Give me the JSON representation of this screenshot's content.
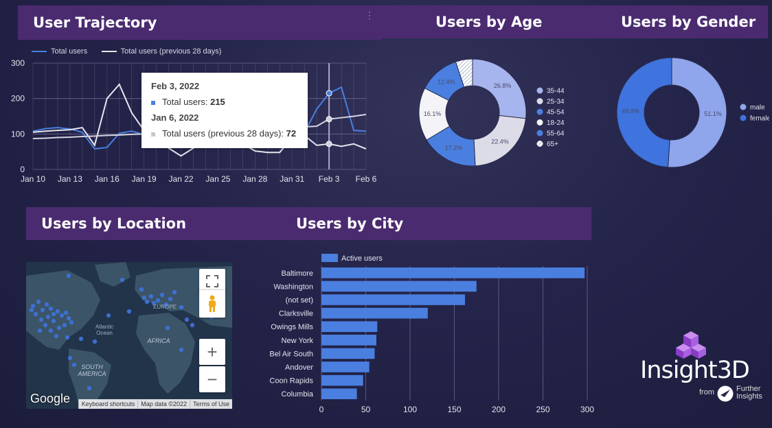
{
  "headers": {
    "trajectory": "User Trajectory",
    "age": "Users by Age",
    "gender": "Users by Gender",
    "location": "Users by Location",
    "city": "Users by City"
  },
  "trajectory_legend": {
    "current": "Total users",
    "previous": "Total users (previous 28 days)",
    "current_color": "#4a7fe0",
    "previous_color": "#e6e6ee"
  },
  "tooltip": {
    "date1": "Feb 3, 2022",
    "label1": "Total users: ",
    "value1": "215",
    "date2": "Jan 6, 2022",
    "label2": "Total users (previous 28 days): ",
    "value2": "72"
  },
  "colors": {
    "header_bg": "#4b2b70",
    "accent_blue": "#4a7fe0",
    "light_blue": "#a7b5ee",
    "light_gray": "#dcdce8",
    "white": "#f4f4f8",
    "gender_male": "#8fa5ec",
    "gender_female": "#3f73dd",
    "map_land": "#3b5468",
    "map_water": "#22344a",
    "map_dot": "#3f73dd"
  },
  "map": {
    "labels": [
      "Atlantic",
      "Ocean",
      "AFRICA",
      "SOUTH",
      "AMERICA",
      "EUROPE"
    ],
    "google": "Google",
    "footer": [
      "Keyboard shortcuts",
      "Map data ©2022",
      "Terms of Use"
    ],
    "icons": [
      "fullscreen-icon",
      "pegman-icon",
      "zoom-in-icon",
      "zoom-out-icon"
    ]
  },
  "brand": {
    "name": "Insight3D",
    "from": "from",
    "company_line1": "Further",
    "company_line2": "Insights"
  },
  "chart_data": [
    {
      "type": "line",
      "title": "User Trajectory",
      "x": [
        "Jan 10",
        "Jan 11",
        "Jan 12",
        "Jan 13",
        "Jan 14",
        "Jan 15",
        "Jan 16",
        "Jan 17",
        "Jan 18",
        "Jan 19",
        "Jan 20",
        "Jan 21",
        "Jan 22",
        "Jan 23",
        "Jan 24",
        "Jan 25",
        "Jan 26",
        "Jan 27",
        "Jan 28",
        "Jan 29",
        "Jan 30",
        "Jan 31",
        "Feb 1",
        "Feb 2",
        "Feb 3",
        "Feb 4",
        "Feb 5",
        "Feb 6"
      ],
      "xticks": [
        "Jan 10",
        "Jan 13",
        "Jan 16",
        "Jan 19",
        "Jan 22",
        "Jan 25",
        "Jan 28",
        "Jan 31",
        "Feb 3",
        "Feb 6"
      ],
      "yticks": [
        0,
        100,
        200,
        300
      ],
      "ylim": [
        0,
        300
      ],
      "grid": true,
      "legend_position": "top-left",
      "series": [
        {
          "name": "Total users",
          "values": [
            108,
            115,
            118,
            114,
            105,
            58,
            62,
            102,
            108,
            98,
            104,
            100,
            108,
            110,
            104,
            106,
            108,
            106,
            102,
            98,
            96,
            100,
            104,
            170,
            215,
            232,
            110,
            108
          ]
        },
        {
          "name": "Total users (previous 28 days)",
          "values": [
            105,
            108,
            110,
            112,
            118,
            68,
            200,
            240,
            160,
            110,
            88,
            60,
            38,
            60,
            95,
            98,
            90,
            72,
            52,
            48,
            48,
            90,
            96,
            68,
            72,
            65,
            72,
            58
          ]
        },
        {
          "name": "",
          "values": [
            87,
            88,
            90,
            91,
            93,
            94,
            96,
            97,
            99,
            100,
            102,
            103,
            105,
            106,
            108,
            110,
            111,
            113,
            114,
            116,
            117,
            119,
            120,
            122,
            142,
            146,
            150,
            155
          ]
        }
      ],
      "highlight_index": 24
    },
    {
      "type": "pie",
      "title": "Users by Age",
      "donut": true,
      "legend_position": "right",
      "labels": [
        "35-44",
        "25-34",
        "45-54",
        "18-24",
        "55-64",
        "65+"
      ],
      "values": [
        26.8,
        22.4,
        17.2,
        16.1,
        12.4,
        5.1
      ],
      "slice_labels": [
        "26.8%",
        "22.4%",
        "17.2%",
        "16.1%",
        "12.4%",
        ""
      ]
    },
    {
      "type": "pie",
      "title": "Users by Gender",
      "donut": true,
      "legend_position": "right",
      "labels": [
        "male",
        "female"
      ],
      "values": [
        51.1,
        48.9
      ],
      "slice_labels": [
        "51.1%",
        "48.9%"
      ]
    },
    {
      "type": "bar",
      "orientation": "horizontal",
      "title": "Users by City",
      "legend_position": "top-left",
      "series_name": "Active users",
      "categories": [
        "Baltimore",
        "Washington",
        "(not set)",
        "Clarksville",
        "Owings Mills",
        "New York",
        "Bel Air South",
        "Andover",
        "Coon Rapids",
        "Columbia"
      ],
      "values": [
        297,
        175,
        162,
        120,
        63,
        62,
        60,
        54,
        47,
        40
      ],
      "xticks": [
        0,
        50,
        100,
        150,
        200,
        250,
        300
      ],
      "xlim": [
        0,
        300
      ],
      "grid": true
    }
  ]
}
